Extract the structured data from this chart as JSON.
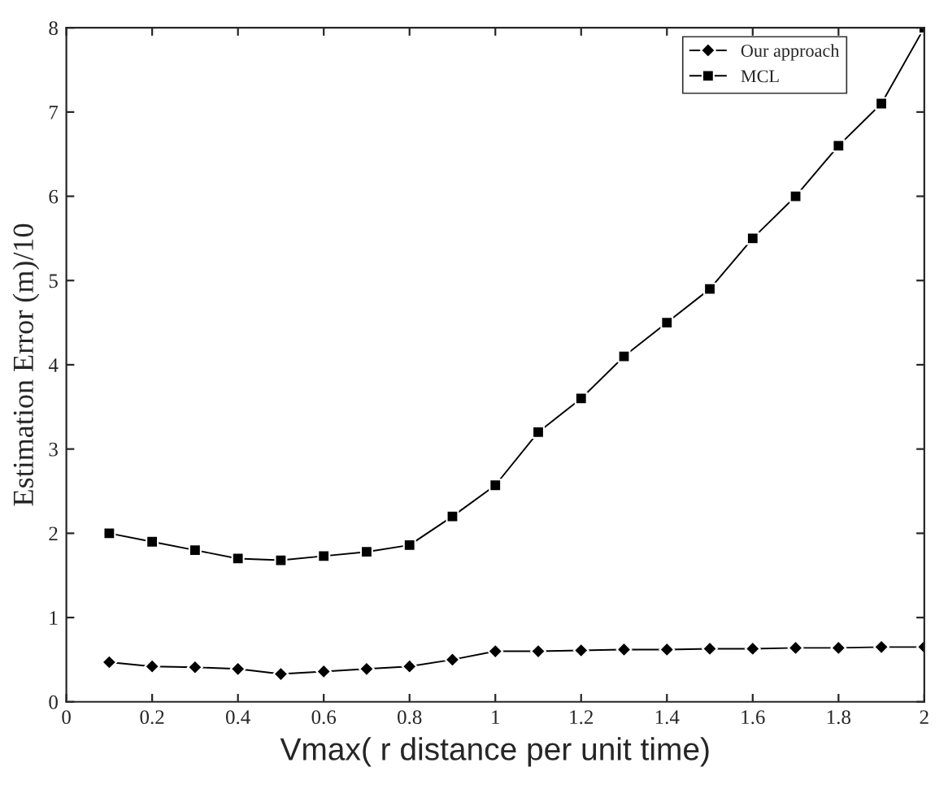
{
  "chart_data": {
    "type": "line",
    "xlabel": "Vmax( r distance per unit time)",
    "ylabel": "Estimation Error (m)/10",
    "x": [
      0.1,
      0.2,
      0.3,
      0.4,
      0.5,
      0.6,
      0.7,
      0.8,
      0.9,
      1.0,
      1.1,
      1.2,
      1.3,
      1.4,
      1.5,
      1.6,
      1.7,
      1.8,
      1.9,
      2.0
    ],
    "series": [
      {
        "name": "Our approach",
        "color": "#000000",
        "marker": "diamond",
        "values": [
          0.47,
          0.42,
          0.41,
          0.39,
          0.33,
          0.36,
          0.39,
          0.42,
          0.5,
          0.6,
          0.6,
          0.61,
          0.62,
          0.62,
          0.63,
          0.63,
          0.64,
          0.64,
          0.65,
          0.65
        ]
      },
      {
        "name": "MCL",
        "color": "#000000",
        "marker": "square",
        "values": [
          2.0,
          1.9,
          1.8,
          1.7,
          1.68,
          1.73,
          1.78,
          1.86,
          2.2,
          2.57,
          3.2,
          3.6,
          4.1,
          4.5,
          4.9,
          5.5,
          6.0,
          6.6,
          7.1,
          8.0
        ]
      }
    ],
    "xlim": [
      0,
      2
    ],
    "xticks": [
      0,
      0.2,
      0.4,
      0.6,
      0.8,
      1,
      1.2,
      1.4,
      1.6,
      1.8,
      2
    ],
    "ylim": [
      0,
      8
    ],
    "yticks": [
      0,
      1,
      2,
      3,
      4,
      5,
      6,
      7,
      8
    ],
    "grid": false,
    "legend": "top right",
    "line_style": "solid"
  }
}
